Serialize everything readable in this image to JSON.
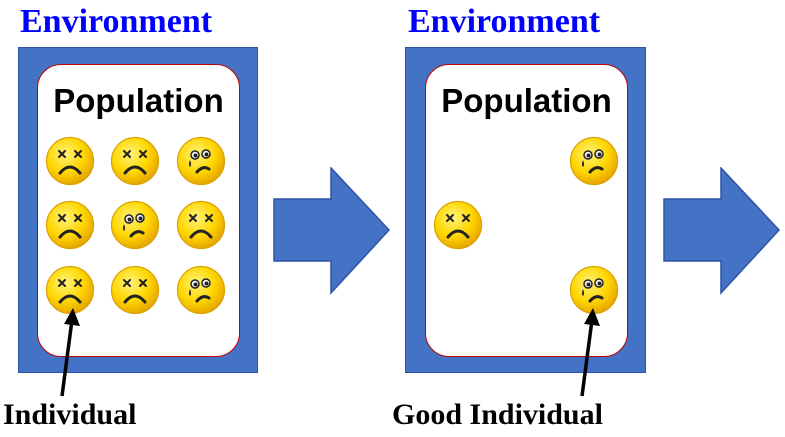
{
  "colors": {
    "title": "#0000FF",
    "environment_fill": "#4472C4",
    "population_border": "#C00000",
    "face_fill": "#FFD700",
    "arrow_fill": "#4472C4"
  },
  "panels": [
    {
      "environment_label": "Environment",
      "population_label": "Population",
      "faces": [
        {
          "icon": "dead-face-icon"
        },
        {
          "icon": "dead-face-icon"
        },
        {
          "icon": "sad-tear-face-icon"
        },
        {
          "icon": "dead-face-icon"
        },
        {
          "icon": "sad-tear-face-icon"
        },
        {
          "icon": "dead-face-icon"
        },
        {
          "icon": "dead-face-icon"
        },
        {
          "icon": "dead-face-icon"
        },
        {
          "icon": "sad-tear-face-icon"
        }
      ],
      "caption": "Individual"
    },
    {
      "environment_label": "Environment",
      "population_label": "Population",
      "faces": [
        {
          "icon": "sad-tear-face-icon"
        },
        {
          "icon": "dead-face-icon"
        },
        {
          "icon": "sad-tear-face-icon"
        }
      ],
      "caption": "Good Individual"
    }
  ]
}
